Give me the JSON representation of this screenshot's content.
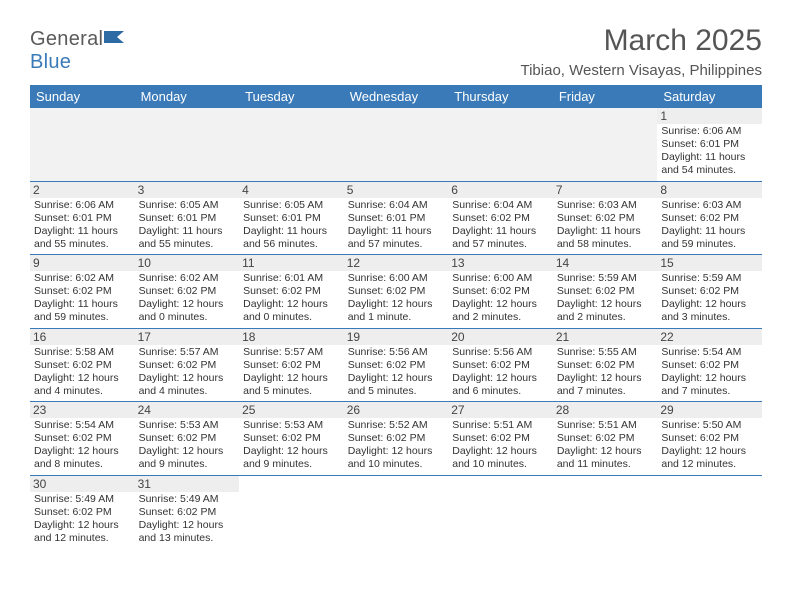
{
  "logo": {
    "text_a": "General",
    "text_b": "Blue"
  },
  "title": "March 2025",
  "location": "Tibiao, Western Visayas, Philippines",
  "colors": {
    "header_bg": "#3a7ab8",
    "header_fg": "#ffffff",
    "text": "#555555"
  },
  "weekdays": [
    "Sunday",
    "Monday",
    "Tuesday",
    "Wednesday",
    "Thursday",
    "Friday",
    "Saturday"
  ],
  "weeks": [
    [
      null,
      null,
      null,
      null,
      null,
      null,
      {
        "n": "1",
        "sr": "6:06 AM",
        "ss": "6:01 PM",
        "dl": "11 hours and 54 minutes."
      }
    ],
    [
      {
        "n": "2",
        "sr": "6:06 AM",
        "ss": "6:01 PM",
        "dl": "11 hours and 55 minutes."
      },
      {
        "n": "3",
        "sr": "6:05 AM",
        "ss": "6:01 PM",
        "dl": "11 hours and 55 minutes."
      },
      {
        "n": "4",
        "sr": "6:05 AM",
        "ss": "6:01 PM",
        "dl": "11 hours and 56 minutes."
      },
      {
        "n": "5",
        "sr": "6:04 AM",
        "ss": "6:01 PM",
        "dl": "11 hours and 57 minutes."
      },
      {
        "n": "6",
        "sr": "6:04 AM",
        "ss": "6:02 PM",
        "dl": "11 hours and 57 minutes."
      },
      {
        "n": "7",
        "sr": "6:03 AM",
        "ss": "6:02 PM",
        "dl": "11 hours and 58 minutes."
      },
      {
        "n": "8",
        "sr": "6:03 AM",
        "ss": "6:02 PM",
        "dl": "11 hours and 59 minutes."
      }
    ],
    [
      {
        "n": "9",
        "sr": "6:02 AM",
        "ss": "6:02 PM",
        "dl": "11 hours and 59 minutes."
      },
      {
        "n": "10",
        "sr": "6:02 AM",
        "ss": "6:02 PM",
        "dl": "12 hours and 0 minutes."
      },
      {
        "n": "11",
        "sr": "6:01 AM",
        "ss": "6:02 PM",
        "dl": "12 hours and 0 minutes."
      },
      {
        "n": "12",
        "sr": "6:00 AM",
        "ss": "6:02 PM",
        "dl": "12 hours and 1 minute."
      },
      {
        "n": "13",
        "sr": "6:00 AM",
        "ss": "6:02 PM",
        "dl": "12 hours and 2 minutes."
      },
      {
        "n": "14",
        "sr": "5:59 AM",
        "ss": "6:02 PM",
        "dl": "12 hours and 2 minutes."
      },
      {
        "n": "15",
        "sr": "5:59 AM",
        "ss": "6:02 PM",
        "dl": "12 hours and 3 minutes."
      }
    ],
    [
      {
        "n": "16",
        "sr": "5:58 AM",
        "ss": "6:02 PM",
        "dl": "12 hours and 4 minutes."
      },
      {
        "n": "17",
        "sr": "5:57 AM",
        "ss": "6:02 PM",
        "dl": "12 hours and 4 minutes."
      },
      {
        "n": "18",
        "sr": "5:57 AM",
        "ss": "6:02 PM",
        "dl": "12 hours and 5 minutes."
      },
      {
        "n": "19",
        "sr": "5:56 AM",
        "ss": "6:02 PM",
        "dl": "12 hours and 5 minutes."
      },
      {
        "n": "20",
        "sr": "5:56 AM",
        "ss": "6:02 PM",
        "dl": "12 hours and 6 minutes."
      },
      {
        "n": "21",
        "sr": "5:55 AM",
        "ss": "6:02 PM",
        "dl": "12 hours and 7 minutes."
      },
      {
        "n": "22",
        "sr": "5:54 AM",
        "ss": "6:02 PM",
        "dl": "12 hours and 7 minutes."
      }
    ],
    [
      {
        "n": "23",
        "sr": "5:54 AM",
        "ss": "6:02 PM",
        "dl": "12 hours and 8 minutes."
      },
      {
        "n": "24",
        "sr": "5:53 AM",
        "ss": "6:02 PM",
        "dl": "12 hours and 9 minutes."
      },
      {
        "n": "25",
        "sr": "5:53 AM",
        "ss": "6:02 PM",
        "dl": "12 hours and 9 minutes."
      },
      {
        "n": "26",
        "sr": "5:52 AM",
        "ss": "6:02 PM",
        "dl": "12 hours and 10 minutes."
      },
      {
        "n": "27",
        "sr": "5:51 AM",
        "ss": "6:02 PM",
        "dl": "12 hours and 10 minutes."
      },
      {
        "n": "28",
        "sr": "5:51 AM",
        "ss": "6:02 PM",
        "dl": "12 hours and 11 minutes."
      },
      {
        "n": "29",
        "sr": "5:50 AM",
        "ss": "6:02 PM",
        "dl": "12 hours and 12 minutes."
      }
    ],
    [
      {
        "n": "30",
        "sr": "5:49 AM",
        "ss": "6:02 PM",
        "dl": "12 hours and 12 minutes."
      },
      {
        "n": "31",
        "sr": "5:49 AM",
        "ss": "6:02 PM",
        "dl": "12 hours and 13 minutes."
      },
      null,
      null,
      null,
      null,
      null
    ]
  ],
  "labels": {
    "sunrise": "Sunrise:",
    "sunset": "Sunset:",
    "daylight": "Daylight:"
  }
}
